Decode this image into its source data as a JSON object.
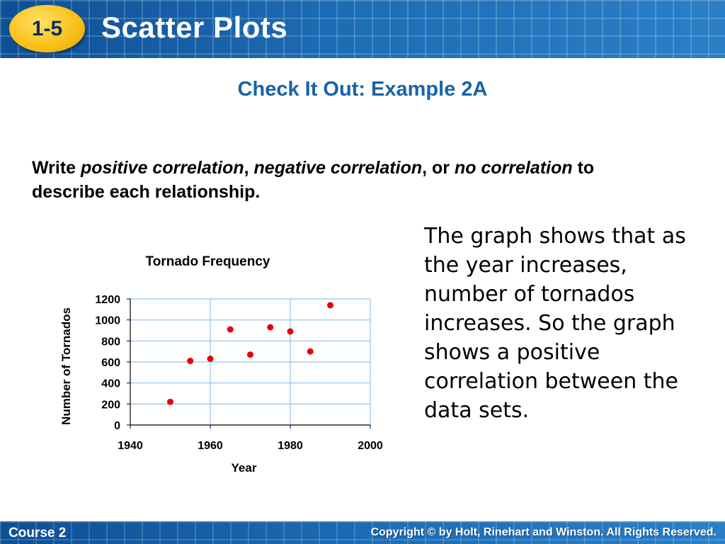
{
  "header": {
    "lesson_number": "1-5",
    "title": "Scatter Plots"
  },
  "example_heading": "Check It Out: Example 2A",
  "instructions": {
    "write": "Write ",
    "term1": "positive correlation",
    "comma1": ", ",
    "term2": "negative correlation",
    "or": ", or ",
    "term3": "no correlation",
    "rest": " to describe each relationship."
  },
  "explanation": "The graph shows that as the year increases, number of tornados increases. So the graph shows a positive correlation between the data sets.",
  "footer": {
    "course": "Course 2",
    "copyright": "Copyright © by Holt, Rinehart and Winston. All Rights Reserved."
  },
  "colors": {
    "header_blue": "#1d6bb5",
    "badge_yellow": "#f9c21a",
    "heading_blue": "#1763a8",
    "point_red": "#e8000d",
    "gridline_blue": "#a9cdef"
  },
  "chart_data": {
    "type": "scatter",
    "title": "Tornado Frequency",
    "xlabel": "Year",
    "ylabel": "Number of Tornados",
    "xlim": [
      1940,
      2000
    ],
    "ylim": [
      0,
      1200
    ],
    "xticks": [
      1940,
      1960,
      1980,
      2000
    ],
    "yticks": [
      0,
      200,
      400,
      600,
      800,
      1000,
      1200
    ],
    "grid": true,
    "legend": "none",
    "series": [
      {
        "x": [
          1950,
          1955,
          1960,
          1965,
          1970,
          1975,
          1980,
          1985,
          1990
        ],
        "y": [
          220,
          610,
          630,
          910,
          670,
          930,
          890,
          700,
          1140
        ]
      }
    ]
  }
}
